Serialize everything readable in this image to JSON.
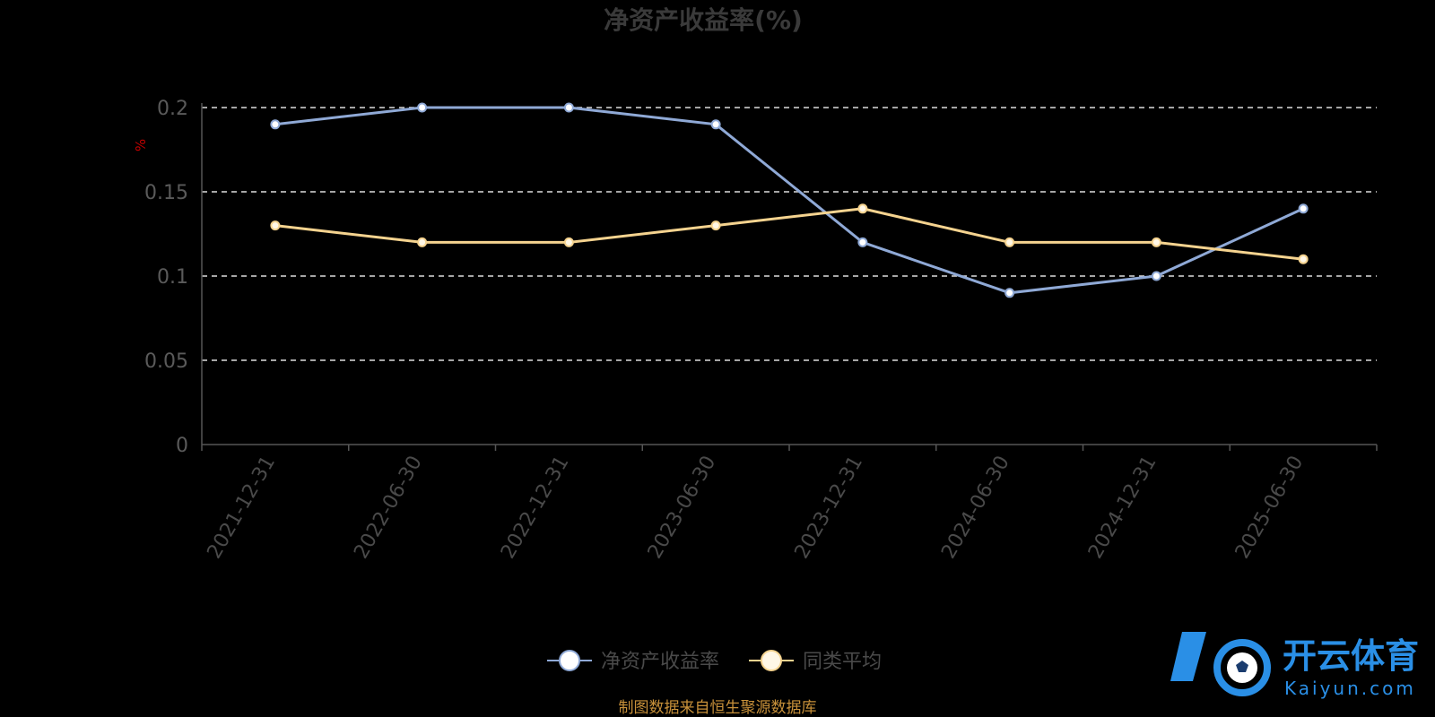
{
  "chart_data": {
    "type": "line",
    "title": "净资产收益率(%)",
    "ylabel": "%",
    "ylim": [
      0,
      0.2
    ],
    "yticks": [
      "0",
      "0.05",
      "0.1",
      "0.15",
      "0.2"
    ],
    "categories": [
      "2021-12-31",
      "2022-06-30",
      "2022-12-31",
      "2023-06-30",
      "2023-12-31",
      "2024-06-30",
      "2024-12-31",
      "2025-06-30"
    ],
    "series": [
      {
        "name": "净资产收益率",
        "values": [
          0.19,
          0.2,
          0.2,
          0.19,
          0.12,
          0.09,
          0.1,
          0.14
        ]
      },
      {
        "name": "同类平均",
        "values": [
          0.13,
          0.12,
          0.12,
          0.13,
          0.14,
          0.12,
          0.12,
          0.11
        ]
      }
    ],
    "grid": "dashed horizontal",
    "legend": "bottom-center"
  },
  "colors": {
    "series_1": "#8fa9d6",
    "series_2": "#f5d38f",
    "grid": "#dddddd",
    "axis": "#555555"
  },
  "footer": {
    "source": "制图数据来自恒生聚源数据库"
  },
  "watermark": {
    "cn": "开云体育",
    "en": "Kaiyun.com",
    "icon": "soccer-ball-logo-icon"
  }
}
